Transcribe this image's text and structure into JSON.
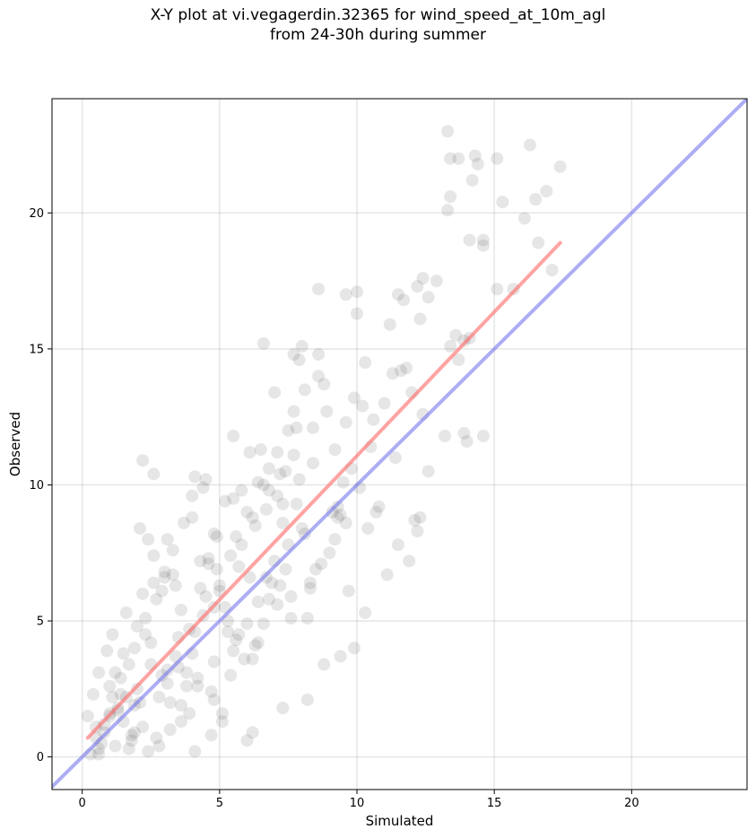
{
  "title_line1": "X-Y plot at vi.vegagerdin.32365 for wind_speed_at_10m_agl",
  "title_line2": "from 24-30h during summer",
  "chart_data": {
    "type": "scatter",
    "title": "X-Y plot at vi.vegagerdin.32365 for wind_speed_at_10m_agl\nfrom 24-30h during summer",
    "xlabel": "Simulated",
    "ylabel": "Observed",
    "xlim": [
      -1.1,
      24.2
    ],
    "ylim": [
      -1.2,
      24.2
    ],
    "xticks": [
      0,
      5,
      10,
      15,
      20
    ],
    "yticks": [
      0,
      5,
      10,
      15,
      20
    ],
    "grid": true,
    "point_color": "#555555",
    "point_opacity": 0.15,
    "series": [
      {
        "style": "points",
        "note_points": "representative sample of the dense point cloud",
        "x": [
          13.3,
          16.3,
          13.4,
          13.7,
          14.3,
          17.4,
          14.4,
          14.6,
          13.4,
          15.1,
          16.9,
          13.3,
          16.5,
          14.2,
          15.3,
          16.1,
          14.1,
          14.6,
          16.6,
          15.7,
          15.1,
          17.1,
          8.6,
          9.6,
          10.0,
          12.6,
          12.9,
          11.5,
          12.2,
          11.7,
          12.4,
          13.6,
          13.4,
          13.7,
          13.9,
          14.1,
          13.9,
          13.2,
          14.6,
          14.0,
          12.3,
          12.1,
          12.2,
          12.6,
          6.6,
          7.7,
          8.0,
          7.9,
          2.2,
          2.6,
          4.1,
          4.5,
          4.0,
          5.5,
          5.8,
          6.6,
          7.1,
          7.3,
          9.4,
          9.6,
          11.5,
          11.9,
          1.9,
          1.6,
          1.0,
          0.5,
          0.3,
          0.6,
          0.8,
          1.8,
          2.4,
          2.8,
          3.2,
          4.1,
          4.7,
          5.1,
          6.2,
          7.3,
          8.2,
          8.8,
          9.4,
          9.9,
          10.3,
          11.1,
          0.6,
          1.1,
          1.5,
          2.0,
          2.5,
          3.1,
          3.6,
          4.2,
          4.8,
          5.3,
          6.0,
          6.4,
          7.0,
          7.6,
          8.3,
          9.0,
          9.7,
          10.4,
          1.0,
          1.4,
          1.9,
          2.3,
          2.9,
          3.4,
          3.9,
          4.4,
          4.9,
          5.6,
          6.1,
          6.8,
          7.4,
          8.1,
          8.7,
          9.3,
          10.1,
          10.8,
          11.4,
          0.4,
          0.9,
          1.3,
          1.7,
          2.1,
          2.7,
          3.0,
          3.5,
          4.0,
          4.6,
          5.0,
          5.4,
          5.9,
          6.3,
          6.9,
          7.5,
          7.9,
          8.5,
          9.1,
          9.8,
          10.5,
          0.8,
          1.2,
          1.6,
          2.2,
          2.6,
          3.3,
          3.8,
          4.3,
          4.9,
          5.5,
          6.2,
          6.7,
          7.2,
          7.8,
          8.4,
          9.2,
          9.9,
          10.6,
          11.3,
          12.0,
          0.2,
          0.7,
          1.1,
          1.5,
          2.0,
          2.4,
          2.9,
          3.4,
          3.7,
          4.5,
          5.2,
          5.7,
          6.5,
          7.1,
          7.7,
          8.6,
          9.5,
          10.2,
          11.0,
          11.8,
          1.3,
          1.8,
          2.3,
          2.8,
          3.3,
          3.8,
          4.3,
          4.8,
          5.3,
          5.8,
          6.3,
          6.8,
          7.3,
          7.8,
          8.3,
          8.8,
          9.3,
          0.5,
          1.0,
          1.4,
          1.9,
          2.5,
          3.1,
          3.6,
          4.1,
          4.7,
          5.2,
          5.7,
          6.2,
          6.7,
          7.2,
          7.7,
          8.2,
          2.1,
          3.0,
          3.9,
          4.6,
          5.4,
          6.1,
          6.6,
          7.4,
          8.0,
          8.9,
          9.6,
          10.3,
          11.2,
          12.3,
          3.5,
          4.4,
          5.0,
          5.6,
          6.4,
          7.0,
          7.6,
          8.4,
          9.2,
          10.0,
          10.7,
          11.6,
          12.4,
          0.6,
          1.2,
          1.7,
          2.2,
          2.7,
          3.2,
          3.6,
          4.2,
          4.8,
          5.1,
          6.0,
          2.6,
          3.1,
          4.0,
          4.8,
          5.5,
          6.0,
          6.4,
          6.8,
          7.1,
          7.5,
          8.1,
          8.6
        ],
        "y": [
          23.0,
          22.5,
          22.0,
          22.0,
          22.1,
          21.7,
          21.8,
          19.0,
          20.6,
          22.0,
          20.8,
          20.1,
          20.5,
          21.2,
          20.4,
          19.8,
          19.0,
          18.8,
          18.9,
          17.2,
          17.2,
          17.9,
          17.2,
          17.0,
          17.1,
          16.9,
          17.5,
          17.0,
          17.3,
          16.8,
          17.6,
          15.5,
          15.1,
          14.6,
          15.3,
          15.4,
          11.9,
          11.8,
          11.8,
          11.6,
          8.8,
          8.7,
          8.3,
          10.5,
          15.2,
          14.8,
          15.1,
          14.6,
          10.9,
          10.4,
          10.3,
          10.2,
          9.6,
          11.8,
          9.8,
          10.0,
          9.6,
          9.3,
          8.9,
          8.6,
          7.8,
          7.2,
          1.9,
          2.2,
          2.6,
          1.1,
          0.1,
          0.3,
          0.9,
          0.6,
          0.2,
          0.4,
          1.0,
          0.2,
          0.8,
          1.3,
          0.9,
          1.8,
          2.1,
          3.4,
          3.7,
          4.0,
          5.3,
          6.7,
          3.1,
          4.5,
          3.8,
          2.5,
          4.2,
          3.2,
          5.4,
          2.9,
          3.5,
          4.6,
          4.9,
          5.7,
          7.2,
          5.1,
          6.2,
          7.5,
          6.1,
          8.4,
          1.6,
          2.9,
          4.0,
          5.1,
          3.0,
          6.3,
          4.7,
          5.2,
          6.9,
          4.3,
          6.6,
          5.8,
          6.9,
          8.2,
          7.1,
          8.8,
          9.9,
          9.2,
          11.0,
          2.3,
          3.9,
          1.7,
          3.4,
          2.0,
          5.8,
          6.6,
          4.4,
          3.8,
          7.1,
          6.1,
          7.4,
          3.6,
          8.5,
          6.4,
          7.8,
          10.2,
          6.9,
          9.0,
          10.6,
          11.4,
          1.2,
          3.1,
          5.3,
          6.0,
          7.4,
          6.7,
          2.6,
          7.2,
          8.1,
          3.9,
          8.8,
          6.6,
          10.4,
          9.3,
          12.1,
          11.3,
          13.2,
          12.4,
          14.1,
          13.4,
          1.5,
          0.5,
          2.2,
          1.3,
          4.8,
          8.0,
          6.1,
          3.7,
          8.6,
          5.9,
          9.4,
          4.5,
          11.3,
          5.6,
          12.7,
          14.8,
          10.1,
          12.9,
          13.0,
          14.3,
          1.8,
          0.8,
          4.5,
          2.2,
          7.6,
          3.1,
          6.2,
          5.5,
          5.0,
          7.8,
          4.1,
          9.8,
          8.6,
          12.1,
          6.4,
          13.7,
          9.2,
          0.7,
          1.5,
          2.3,
          0.9,
          3.4,
          2.7,
          1.9,
          4.6,
          2.4,
          5.5,
          7.0,
          3.6,
          9.1,
          6.3,
          11.1,
          5.1,
          8.4,
          6.8,
          1.6,
          7.3,
          3.0,
          11.2,
          4.9,
          10.5,
          8.4,
          12.7,
          12.3,
          14.5,
          15.9,
          16.1,
          3.3,
          9.9,
          6.3,
          8.1,
          4.2,
          13.4,
          5.9,
          10.8,
          8.0,
          16.3,
          9.0,
          14.2,
          12.6,
          0.1,
          0.4,
          0.3,
          1.1,
          0.7,
          2.0,
          1.3,
          2.6,
          2.1,
          1.6,
          0.6,
          6.4,
          8.0,
          8.8,
          8.2,
          9.5,
          9.0,
          10.1,
          10.6,
          11.2,
          12.0,
          13.5,
          14.0
        ]
      },
      {
        "style": "line",
        "note": "red regression fit",
        "color": "#ff6666",
        "x": [
          0.2,
          17.4
        ],
        "y": [
          0.7,
          18.9
        ]
      },
      {
        "style": "line",
        "note": "blue 1:1 reference line",
        "color": "#7777ee",
        "x": [
          -1.1,
          24.2
        ],
        "y": [
          -1.1,
          24.2
        ]
      }
    ]
  }
}
